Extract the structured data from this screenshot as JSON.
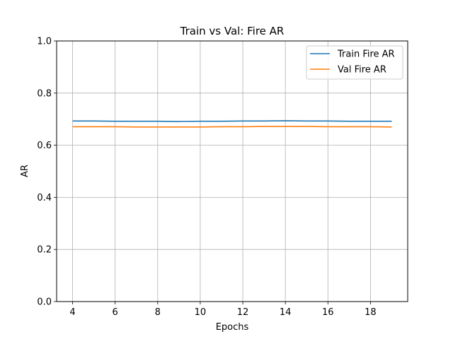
{
  "chart_data": {
    "type": "line",
    "title": "Train vs Val: Fire AR",
    "xlabel": "Epochs",
    "ylabel": "AR",
    "x": [
      4,
      5,
      6,
      7,
      8,
      9,
      10,
      11,
      12,
      13,
      14,
      15,
      16,
      17,
      18,
      19
    ],
    "xticks": [
      "4",
      "6",
      "8",
      "10",
      "12",
      "14",
      "16",
      "18"
    ],
    "yticks": [
      "0.0",
      "0.2",
      "0.4",
      "0.6",
      "0.8",
      "1.0"
    ],
    "xlim": [
      3.25,
      19.75
    ],
    "ylim": [
      0,
      1
    ],
    "grid": true,
    "legend_position": "top-right",
    "series": [
      {
        "name": "Train Fire AR",
        "color": "#1f77b4",
        "values": [
          0.693,
          0.693,
          0.692,
          0.692,
          0.692,
          0.691,
          0.692,
          0.692,
          0.693,
          0.693,
          0.694,
          0.693,
          0.693,
          0.692,
          0.692,
          0.692
        ]
      },
      {
        "name": "Val Fire AR",
        "color": "#ff7f0e",
        "values": [
          0.671,
          0.671,
          0.671,
          0.67,
          0.67,
          0.67,
          0.67,
          0.671,
          0.671,
          0.672,
          0.672,
          0.672,
          0.671,
          0.671,
          0.671,
          0.67
        ]
      }
    ]
  }
}
